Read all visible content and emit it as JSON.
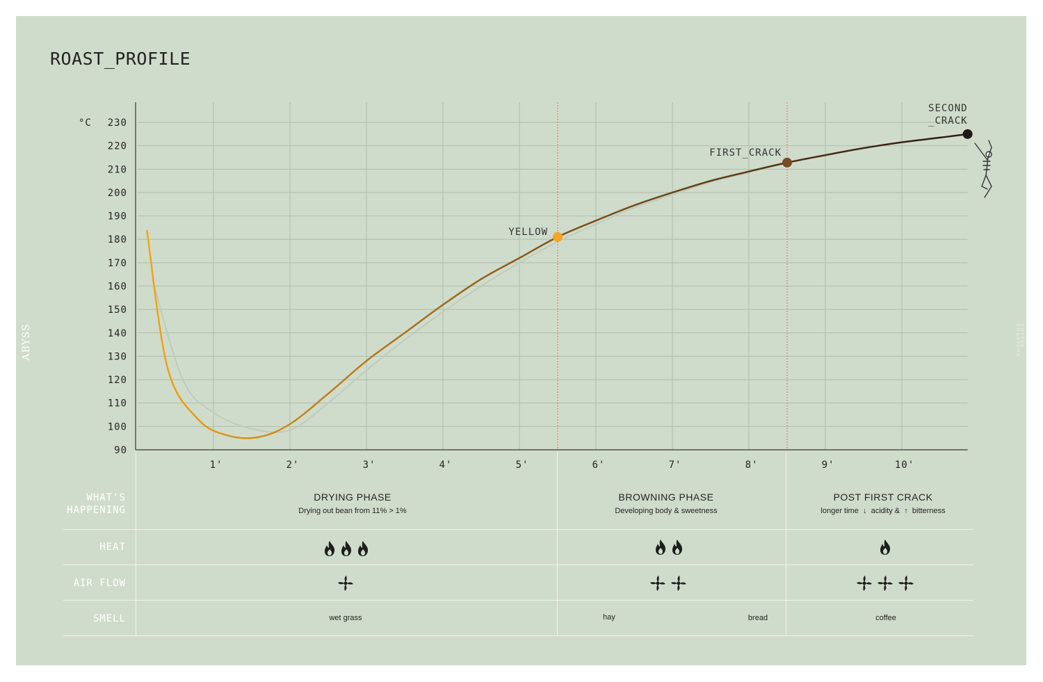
{
  "title": "ROAST_PROFILE",
  "brand": "ABYSS",
  "brand_sub": "COFFEE ROASTERS",
  "colors": {
    "background": "#d0dccb",
    "grid": "#aebdaa",
    "curve_start": "#f2a516",
    "curve_mid": "#8a5a1f",
    "curve_end": "#2a1a10",
    "marker_line": "#d9776a"
  },
  "chart_data": {
    "type": "line",
    "title": "ROAST_PROFILE",
    "ylabel": "°C",
    "xlabel": "",
    "xlim": [
      0,
      10.86
    ],
    "ylim": [
      90,
      230
    ],
    "grid": true,
    "x_ticks": [
      "1'",
      "2'",
      "3'",
      "4'",
      "5'",
      "6'",
      "7'",
      "8'",
      "9'",
      "10'"
    ],
    "y_ticks": [
      90,
      100,
      110,
      120,
      130,
      140,
      150,
      160,
      170,
      180,
      190,
      200,
      210,
      220,
      230
    ],
    "series": [
      {
        "values": [
          [
            0.13,
            184
          ],
          [
            0.4,
            125
          ],
          [
            0.8,
            103
          ],
          [
            1.2,
            96
          ],
          [
            1.6,
            95.5
          ],
          [
            2.0,
            101
          ],
          [
            2.5,
            114
          ],
          [
            3.0,
            128
          ],
          [
            3.5,
            140
          ],
          [
            4.0,
            152
          ],
          [
            4.5,
            163
          ],
          [
            5.0,
            172
          ],
          [
            5.5,
            181
          ],
          [
            6.0,
            188
          ],
          [
            6.5,
            194.5
          ],
          [
            7.0,
            200
          ],
          [
            7.5,
            205
          ],
          [
            8.0,
            209
          ],
          [
            8.5,
            212.8
          ],
          [
            9.0,
            216
          ],
          [
            9.5,
            219
          ],
          [
            10.0,
            221.5
          ],
          [
            10.5,
            223.5
          ],
          [
            10.86,
            225
          ]
        ]
      },
      {
        "values": [
          [
            0.2,
            163
          ],
          [
            0.6,
            120
          ],
          [
            1.0,
            106
          ],
          [
            1.5,
            99
          ],
          [
            2.0,
            98.5
          ],
          [
            2.5,
            110
          ],
          [
            3.0,
            124
          ],
          [
            3.5,
            137
          ],
          [
            4.0,
            149
          ],
          [
            4.5,
            160
          ],
          [
            5.0,
            170
          ],
          [
            5.5,
            179
          ],
          [
            6.0,
            186.5
          ],
          [
            6.5,
            193.5
          ],
          [
            7.0,
            199
          ],
          [
            7.5,
            204.5
          ],
          [
            8.0,
            208.5
          ]
        ]
      }
    ],
    "annotations": [
      {
        "label": "YELLOW",
        "x": 5.5,
        "y": 181,
        "color": "#f5a623"
      },
      {
        "label": "FIRST_CRACK",
        "x": 8.5,
        "y": 212.8,
        "color": "#7a4a25"
      },
      {
        "label": "SECOND\n_CRACK",
        "x": 10.86,
        "y": 225,
        "color": "#1e1a18"
      }
    ]
  },
  "table": {
    "row_labels": [
      "WHAT'S\nHAPPENING",
      "HEAT",
      "AIR FLOW",
      "SMELL"
    ],
    "phases": [
      {
        "name": "DRYING PHASE",
        "desc": "Drying out bean from 11% > 1%",
        "heat": 3,
        "airflow": 1,
        "smells": [
          "wet grass"
        ]
      },
      {
        "name": "BROWNING PHASE",
        "desc": "Developing body & sweetness",
        "heat": 2,
        "airflow": 2,
        "smells": [
          "hay",
          "bread"
        ]
      },
      {
        "name": "POST FIRST CRACK",
        "desc_parts": [
          "longer time",
          "acidity &",
          "bitterness"
        ],
        "heat": 1,
        "airflow": 3,
        "smells": [
          "coffee"
        ]
      }
    ]
  }
}
